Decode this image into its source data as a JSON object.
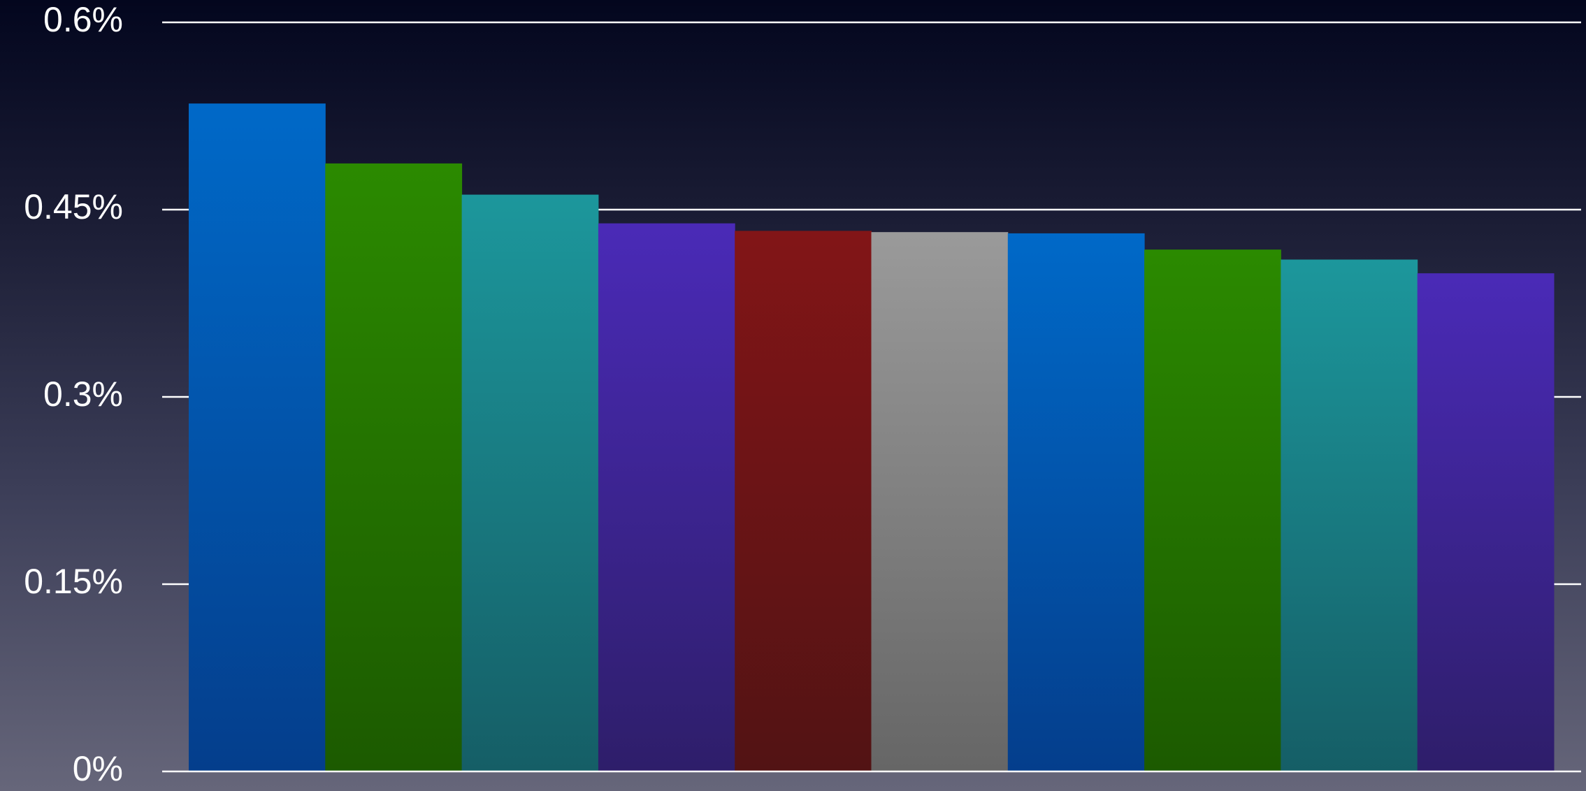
{
  "chart_data": {
    "type": "bar",
    "title": "",
    "xlabel": "",
    "ylabel": "",
    "ylim": [
      0,
      0.6
    ],
    "yticks": [
      {
        "value": 0,
        "label": "0%"
      },
      {
        "value": 0.15,
        "label": "0.15%"
      },
      {
        "value": 0.3,
        "label": "0.3%"
      },
      {
        "value": 0.45,
        "label": "0.45%"
      },
      {
        "value": 0.6,
        "label": "0.6%"
      }
    ],
    "grid": true,
    "values": [
      0.535,
      0.487,
      0.462,
      0.439,
      0.433,
      0.432,
      0.431,
      0.418,
      0.41,
      0.399
    ],
    "colors": [
      "blue",
      "green",
      "teal",
      "purple",
      "red",
      "gray",
      "blue",
      "green",
      "teal",
      "purple"
    ],
    "palette": {
      "blue": {
        "top": "#0069c8",
        "bottom": "#043e8c"
      },
      "green": {
        "top": "#2b8a00",
        "bottom": "#1c5a00"
      },
      "teal": {
        "top": "#1c979c",
        "bottom": "#155e66"
      },
      "purple": {
        "top": "#4a2ab7",
        "bottom": "#2e1e6a"
      },
      "red": {
        "top": "#821517",
        "bottom": "#521314"
      },
      "gray": {
        "top": "#9a9a9a",
        "bottom": "#666666"
      }
    }
  }
}
